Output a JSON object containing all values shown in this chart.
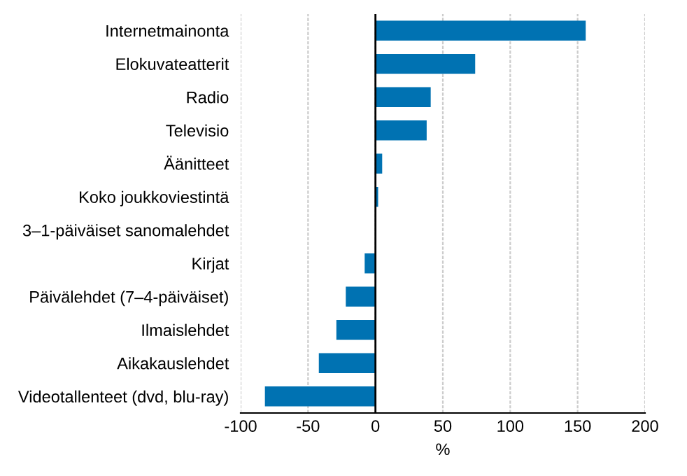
{
  "chart_data": {
    "type": "bar",
    "orientation": "horizontal",
    "xlabel": "%",
    "categories": [
      "Internetmainonta",
      "Elokuvateatterit",
      "Radio",
      "Televisio",
      "Äänitteet",
      "Koko joukkoviestintä",
      "3–1-päiväiset sanomalehdet",
      "Kirjat",
      "Päivälehdet (7–4-päiväiset)",
      "Ilmaislehdet",
      "Aikakauslehdet",
      "Videotallenteet (dvd, blu-ray)"
    ],
    "values": [
      156,
      74,
      41,
      38,
      5,
      2,
      0,
      -8,
      -22,
      -29,
      -42,
      -82
    ],
    "color": "#0072b2",
    "xlim": [
      -100,
      200
    ],
    "xticks": [
      -100,
      -50,
      0,
      50,
      100,
      150,
      200
    ],
    "ref_lines": [
      {
        "axis": "x",
        "value": 0,
        "color": "#000000"
      }
    ],
    "grid": "x",
    "legend": false
  }
}
